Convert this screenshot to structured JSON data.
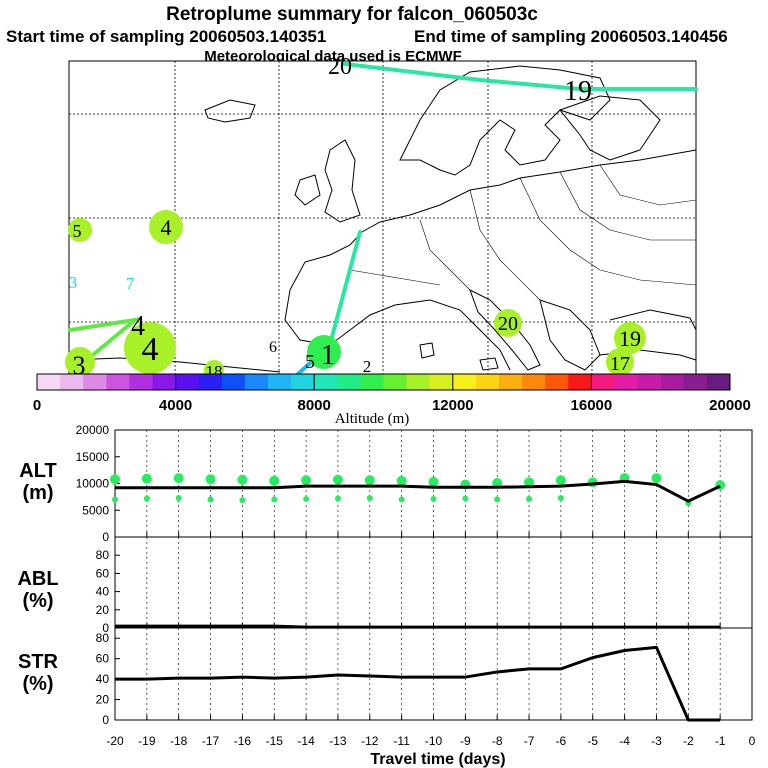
{
  "header": {
    "title": "Retroplume summary for falcon_060503c",
    "start_label": "Start time of sampling 20060503.140351",
    "end_label": "End time of sampling 20060503.140456",
    "met_label": "Meteorological data used is ECMWF"
  },
  "map": {
    "trajectory_labels": [
      {
        "text": "20"
      },
      {
        "text": "19"
      },
      {
        "text": "5"
      },
      {
        "text": "4"
      },
      {
        "text": "3"
      },
      {
        "text": "7"
      },
      {
        "text": "4"
      },
      {
        "text": "3"
      },
      {
        "text": "4"
      },
      {
        "text": "18"
      },
      {
        "text": "6"
      },
      {
        "text": "5"
      },
      {
        "text": "1"
      },
      {
        "text": "2"
      },
      {
        "text": "20"
      },
      {
        "text": "19"
      },
      {
        "text": "17"
      }
    ]
  },
  "colorbar": {
    "title": "Altitude (m)",
    "ticks": [
      "0",
      "4000",
      "8000",
      "12000",
      "16000",
      "20000"
    ],
    "range": [
      0,
      20000
    ],
    "colors": [
      "#f4d8f4",
      "#ecb8f0",
      "#e08ae8",
      "#cc55e0",
      "#b030e0",
      "#8a18e8",
      "#5a10f0",
      "#2a20f4",
      "#1050f8",
      "#1888fa",
      "#20b4f8",
      "#22d4e0",
      "#20e8b8",
      "#22ec88",
      "#30ee50",
      "#66f030",
      "#a8f028",
      "#d8f020",
      "#f8f01a",
      "#fcd414",
      "#fcb010",
      "#fc880c",
      "#fc5808",
      "#f81818",
      "#f41c80",
      "#e41ca8",
      "#c81ca8",
      "#a81ca0",
      "#881c90",
      "#681c80"
    ]
  },
  "chart_data": [
    {
      "type": "line",
      "name": "ALT",
      "ylabel": "ALT (m)",
      "ylim": [
        0,
        20000
      ],
      "yticks": [
        0,
        5000,
        10000,
        15000,
        20000
      ],
      "series": [
        {
          "name": "mean altitude",
          "color": "#000000",
          "x": [
            -20,
            -19,
            -18,
            -17,
            -16,
            -15,
            -14,
            -13,
            -12,
            -11,
            -10,
            -9,
            -8,
            -7,
            -6,
            -5,
            -4,
            -3,
            -2,
            -1
          ],
          "values": [
            9200,
            9200,
            9200,
            9200,
            9200,
            9200,
            9500,
            9500,
            9500,
            9500,
            9300,
            9300,
            9300,
            9400,
            9500,
            9900,
            10400,
            9800,
            6700,
            9500
          ]
        }
      ],
      "plume_dots": [
        {
          "x": -20,
          "y": 10800
        },
        {
          "x": -20,
          "y": 7000
        },
        {
          "x": -19,
          "y": 10900
        },
        {
          "x": -19,
          "y": 7200
        },
        {
          "x": -18,
          "y": 11000
        },
        {
          "x": -18,
          "y": 7300
        },
        {
          "x": -17,
          "y": 10800
        },
        {
          "x": -17,
          "y": 7000
        },
        {
          "x": -16,
          "y": 10700
        },
        {
          "x": -16,
          "y": 6900
        },
        {
          "x": -15,
          "y": 10500
        },
        {
          "x": -15,
          "y": 7000
        },
        {
          "x": -14,
          "y": 10600
        },
        {
          "x": -14,
          "y": 7100
        },
        {
          "x": -13,
          "y": 10700
        },
        {
          "x": -13,
          "y": 7200
        },
        {
          "x": -12,
          "y": 10600
        },
        {
          "x": -12,
          "y": 7300
        },
        {
          "x": -11,
          "y": 10500
        },
        {
          "x": -11,
          "y": 7000
        },
        {
          "x": -10,
          "y": 10300
        },
        {
          "x": -10,
          "y": 7100
        },
        {
          "x": -9,
          "y": 9800
        },
        {
          "x": -9,
          "y": 7200
        },
        {
          "x": -8,
          "y": 10100
        },
        {
          "x": -8,
          "y": 7000
        },
        {
          "x": -7,
          "y": 10200
        },
        {
          "x": -7,
          "y": 7100
        },
        {
          "x": -6,
          "y": 10600
        },
        {
          "x": -6,
          "y": 7300
        },
        {
          "x": -5,
          "y": 10200
        },
        {
          "x": -4,
          "y": 11000
        },
        {
          "x": -3,
          "y": 11000
        },
        {
          "x": -2,
          "y": 6300
        },
        {
          "x": -1,
          "y": 9700
        }
      ]
    },
    {
      "type": "line",
      "name": "ABL",
      "ylabel": "ABL (%)",
      "ylim": [
        0,
        100
      ],
      "yticks": [
        0,
        20,
        40,
        60,
        80
      ],
      "series": [
        {
          "name": "ABL fraction",
          "color": "#000000",
          "x": [
            -20,
            -19,
            -18,
            -17,
            -16,
            -15,
            -14,
            -13,
            -12,
            -11,
            -10,
            -9,
            -8,
            -7,
            -6,
            -5,
            -4,
            -3,
            -2,
            -1
          ],
          "values": [
            2,
            2,
            2,
            2,
            2,
            2,
            1,
            1,
            1,
            1,
            1,
            1,
            1,
            1,
            1,
            1,
            1,
            1,
            1,
            1
          ]
        }
      ]
    },
    {
      "type": "line",
      "name": "STR",
      "ylabel": "STR (%)",
      "ylim": [
        0,
        90
      ],
      "yticks": [
        0,
        20,
        40,
        60,
        80
      ],
      "xlabel": "Travel time (days)",
      "xticks": [
        -20,
        -19,
        -18,
        -17,
        -16,
        -15,
        -14,
        -13,
        -12,
        -11,
        -10,
        -9,
        -8,
        -7,
        -6,
        -5,
        -4,
        -3,
        -2,
        -1,
        0
      ],
      "xlim": [
        -20,
        0
      ],
      "series": [
        {
          "name": "stratospheric fraction",
          "color": "#000000",
          "x": [
            -20,
            -19,
            -18,
            -17,
            -16,
            -15,
            -14,
            -13,
            -12,
            -11,
            -10,
            -9,
            -8,
            -7,
            -6,
            -5,
            -4,
            -3,
            -2,
            -1
          ],
          "values": [
            40,
            40,
            41,
            41,
            42,
            41,
            42,
            44,
            43,
            42,
            42,
            42,
            47,
            50,
            50,
            61,
            68,
            71,
            0,
            0
          ]
        }
      ]
    }
  ],
  "axis_labels": {
    "alt_line1": "ALT",
    "alt_line2": "(m)",
    "abl_line1": "ABL",
    "abl_line2": "(%)",
    "str_line1": "STR",
    "str_line2": "(%)"
  }
}
